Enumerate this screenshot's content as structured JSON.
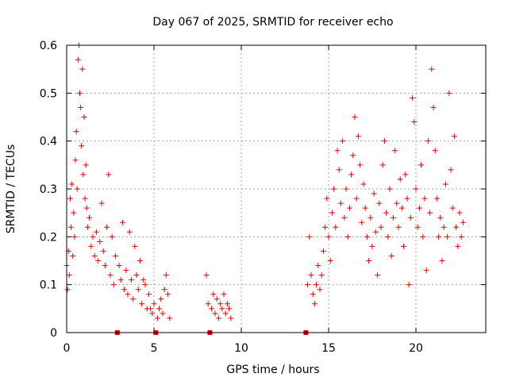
{
  "chart_data": {
    "type": "scatter",
    "title": "Day 067 of 2025, SRMTID for receiver echo",
    "xlabel": "GPS time / hours",
    "ylabel": "SRMTID / TECUs",
    "xlim": [
      0,
      24
    ],
    "ylim": [
      0,
      0.6
    ],
    "grid": true,
    "legend": "none",
    "marker": "+",
    "color": "#e00000",
    "x_ticks": [
      {
        "value": 0,
        "label": "0"
      },
      {
        "value": 5,
        "label": "5"
      },
      {
        "value": 10,
        "label": "10"
      },
      {
        "value": 15,
        "label": "15"
      },
      {
        "value": 20,
        "label": "20"
      }
    ],
    "y_ticks": [
      {
        "value": 0,
        "label": "0"
      },
      {
        "value": 0.1,
        "label": "0.1"
      },
      {
        "value": 0.2,
        "label": "0.2"
      },
      {
        "value": 0.3,
        "label": "0.3"
      },
      {
        "value": 0.4,
        "label": "0.4"
      },
      {
        "value": 0.5,
        "label": "0.5"
      },
      {
        "value": 0.6,
        "label": "0.6"
      }
    ],
    "data_gap_markers_x": [
      2.9,
      5.1,
      8.2,
      13.7
    ],
    "series": [
      {
        "name": "SRMTID",
        "points": [
          [
            0.0,
            0.14
          ],
          [
            0.05,
            0.09
          ],
          [
            0.1,
            0.17
          ],
          [
            0.15,
            0.12
          ],
          [
            0.2,
            0.28
          ],
          [
            0.25,
            0.22
          ],
          [
            0.3,
            0.31
          ],
          [
            0.35,
            0.16
          ],
          [
            0.4,
            0.25
          ],
          [
            0.45,
            0.2
          ],
          [
            0.5,
            0.36
          ],
          [
            0.55,
            0.42
          ],
          [
            0.6,
            0.3
          ],
          [
            0.65,
            0.57
          ],
          [
            0.7,
            0.6
          ],
          [
            0.75,
            0.5
          ],
          [
            0.8,
            0.47
          ],
          [
            0.85,
            0.39
          ],
          [
            0.9,
            0.55
          ],
          [
            0.95,
            0.33
          ],
          [
            1.0,
            0.45
          ],
          [
            1.05,
            0.28
          ],
          [
            1.1,
            0.35
          ],
          [
            1.15,
            0.26
          ],
          [
            1.2,
            0.22
          ],
          [
            1.3,
            0.24
          ],
          [
            1.4,
            0.18
          ],
          [
            1.5,
            0.2
          ],
          [
            1.6,
            0.16
          ],
          [
            1.7,
            0.21
          ],
          [
            1.8,
            0.15
          ],
          [
            1.9,
            0.19
          ],
          [
            2.0,
            0.27
          ],
          [
            2.1,
            0.17
          ],
          [
            2.2,
            0.14
          ],
          [
            2.3,
            0.22
          ],
          [
            2.4,
            0.33
          ],
          [
            2.5,
            0.12
          ],
          [
            2.6,
            0.2
          ],
          [
            2.7,
            0.1
          ],
          [
            2.8,
            0.16
          ],
          [
            3.0,
            0.14
          ],
          [
            3.1,
            0.11
          ],
          [
            3.2,
            0.23
          ],
          [
            3.3,
            0.09
          ],
          [
            3.4,
            0.13
          ],
          [
            3.5,
            0.08
          ],
          [
            3.6,
            0.21
          ],
          [
            3.7,
            0.11
          ],
          [
            3.8,
            0.07
          ],
          [
            3.9,
            0.18
          ],
          [
            4.0,
            0.12
          ],
          [
            4.1,
            0.09
          ],
          [
            4.2,
            0.15
          ],
          [
            4.3,
            0.06
          ],
          [
            4.4,
            0.11
          ],
          [
            4.5,
            0.1
          ],
          [
            4.6,
            0.05
          ],
          [
            4.7,
            0.08
          ],
          [
            4.8,
            0.05
          ],
          [
            4.9,
            0.04
          ],
          [
            5.0,
            0.06
          ],
          [
            5.2,
            0.03
          ],
          [
            5.3,
            0.05
          ],
          [
            5.4,
            0.07
          ],
          [
            5.5,
            0.04
          ],
          [
            5.6,
            0.09
          ],
          [
            5.7,
            0.12
          ],
          [
            5.8,
            0.08
          ],
          [
            5.9,
            0.03
          ],
          [
            8.0,
            0.12
          ],
          [
            8.1,
            0.06
          ],
          [
            8.3,
            0.05
          ],
          [
            8.4,
            0.08
          ],
          [
            8.5,
            0.04
          ],
          [
            8.6,
            0.07
          ],
          [
            8.7,
            0.03
          ],
          [
            8.8,
            0.06
          ],
          [
            8.9,
            0.05
          ],
          [
            9.0,
            0.08
          ],
          [
            9.1,
            0.04
          ],
          [
            9.2,
            0.06
          ],
          [
            9.3,
            0.05
          ],
          [
            9.4,
            0.03
          ],
          [
            13.8,
            0.1
          ],
          [
            13.9,
            0.2
          ],
          [
            14.0,
            0.12
          ],
          [
            14.1,
            0.08
          ],
          [
            14.2,
            0.06
          ],
          [
            14.3,
            0.1
          ],
          [
            14.4,
            0.14
          ],
          [
            14.5,
            0.09
          ],
          [
            14.6,
            0.12
          ],
          [
            14.7,
            0.17
          ],
          [
            14.8,
            0.22
          ],
          [
            14.9,
            0.28
          ],
          [
            15.0,
            0.2
          ],
          [
            15.1,
            0.15
          ],
          [
            15.2,
            0.25
          ],
          [
            15.3,
            0.3
          ],
          [
            15.4,
            0.22
          ],
          [
            15.5,
            0.38
          ],
          [
            15.6,
            0.34
          ],
          [
            15.7,
            0.27
          ],
          [
            15.8,
            0.4
          ],
          [
            15.9,
            0.24
          ],
          [
            16.0,
            0.3
          ],
          [
            16.1,
            0.2
          ],
          [
            16.2,
            0.26
          ],
          [
            16.3,
            0.33
          ],
          [
            16.4,
            0.37
          ],
          [
            16.5,
            0.45
          ],
          [
            16.6,
            0.28
          ],
          [
            16.7,
            0.41
          ],
          [
            16.8,
            0.35
          ],
          [
            16.9,
            0.23
          ],
          [
            17.0,
            0.31
          ],
          [
            17.1,
            0.26
          ],
          [
            17.2,
            0.2
          ],
          [
            17.3,
            0.15
          ],
          [
            17.4,
            0.24
          ],
          [
            17.5,
            0.18
          ],
          [
            17.6,
            0.29
          ],
          [
            17.7,
            0.21
          ],
          [
            17.8,
            0.12
          ],
          [
            17.9,
            0.27
          ],
          [
            18.0,
            0.22
          ],
          [
            18.1,
            0.35
          ],
          [
            18.2,
            0.4
          ],
          [
            18.3,
            0.25
          ],
          [
            18.4,
            0.2
          ],
          [
            18.5,
            0.3
          ],
          [
            18.6,
            0.16
          ],
          [
            18.7,
            0.24
          ],
          [
            18.8,
            0.38
          ],
          [
            18.9,
            0.27
          ],
          [
            19.0,
            0.22
          ],
          [
            19.1,
            0.32
          ],
          [
            19.2,
            0.26
          ],
          [
            19.3,
            0.18
          ],
          [
            19.4,
            0.33
          ],
          [
            19.5,
            0.28
          ],
          [
            19.6,
            0.1
          ],
          [
            19.7,
            0.24
          ],
          [
            19.8,
            0.49
          ],
          [
            19.9,
            0.44
          ],
          [
            20.0,
            0.3
          ],
          [
            20.1,
            0.22
          ],
          [
            20.2,
            0.26
          ],
          [
            20.3,
            0.35
          ],
          [
            20.4,
            0.2
          ],
          [
            20.5,
            0.28
          ],
          [
            20.6,
            0.13
          ],
          [
            20.7,
            0.4
          ],
          [
            20.8,
            0.25
          ],
          [
            20.9,
            0.55
          ],
          [
            21.0,
            0.47
          ],
          [
            21.1,
            0.38
          ],
          [
            21.2,
            0.28
          ],
          [
            21.3,
            0.2
          ],
          [
            21.4,
            0.24
          ],
          [
            21.5,
            0.15
          ],
          [
            21.6,
            0.22
          ],
          [
            21.7,
            0.31
          ],
          [
            21.8,
            0.2
          ],
          [
            21.9,
            0.5
          ],
          [
            22.0,
            0.34
          ],
          [
            22.1,
            0.26
          ],
          [
            22.2,
            0.41
          ],
          [
            22.3,
            0.22
          ],
          [
            22.4,
            0.18
          ],
          [
            22.5,
            0.25
          ],
          [
            22.6,
            0.2
          ],
          [
            22.7,
            0.23
          ]
        ]
      }
    ]
  }
}
